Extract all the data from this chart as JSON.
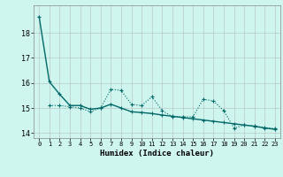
{
  "title": "",
  "xlabel": "Humidex (Indice chaleur)",
  "bg_color": "#cef5ee",
  "grid_color": "#b0b0b0",
  "line_color": "#006868",
  "xlim": [
    -0.5,
    23.5
  ],
  "ylim": [
    13.8,
    19.1
  ],
  "yticks": [
    14,
    15,
    16,
    17,
    18
  ],
  "xticks": [
    0,
    1,
    2,
    3,
    4,
    5,
    6,
    7,
    8,
    9,
    10,
    11,
    12,
    13,
    14,
    15,
    16,
    17,
    18,
    19,
    20,
    21,
    22,
    23
  ],
  "line1_x": [
    0,
    1,
    2,
    3,
    4,
    5,
    6,
    7,
    8,
    9,
    10,
    11,
    12,
    13,
    14,
    15,
    16,
    17,
    18,
    19,
    20,
    21,
    22,
    23
  ],
  "line1_y": [
    18.65,
    16.05,
    15.55,
    15.1,
    15.1,
    14.95,
    15.0,
    15.15,
    15.0,
    14.85,
    14.82,
    14.78,
    14.72,
    14.67,
    14.62,
    14.57,
    14.52,
    14.47,
    14.42,
    14.37,
    14.32,
    14.27,
    14.2,
    14.15
  ],
  "line2_x": [
    1,
    2,
    3,
    4,
    5,
    6,
    7,
    8,
    9,
    10,
    11,
    12,
    13,
    14,
    15,
    16,
    17,
    18,
    19,
    20,
    21,
    22,
    23
  ],
  "line2_y": [
    15.1,
    15.1,
    15.05,
    15.0,
    14.85,
    15.0,
    15.75,
    15.7,
    15.15,
    15.1,
    15.45,
    14.9,
    14.65,
    14.65,
    14.65,
    15.35,
    15.28,
    14.9,
    14.2,
    14.32,
    14.28,
    14.22,
    14.18
  ]
}
